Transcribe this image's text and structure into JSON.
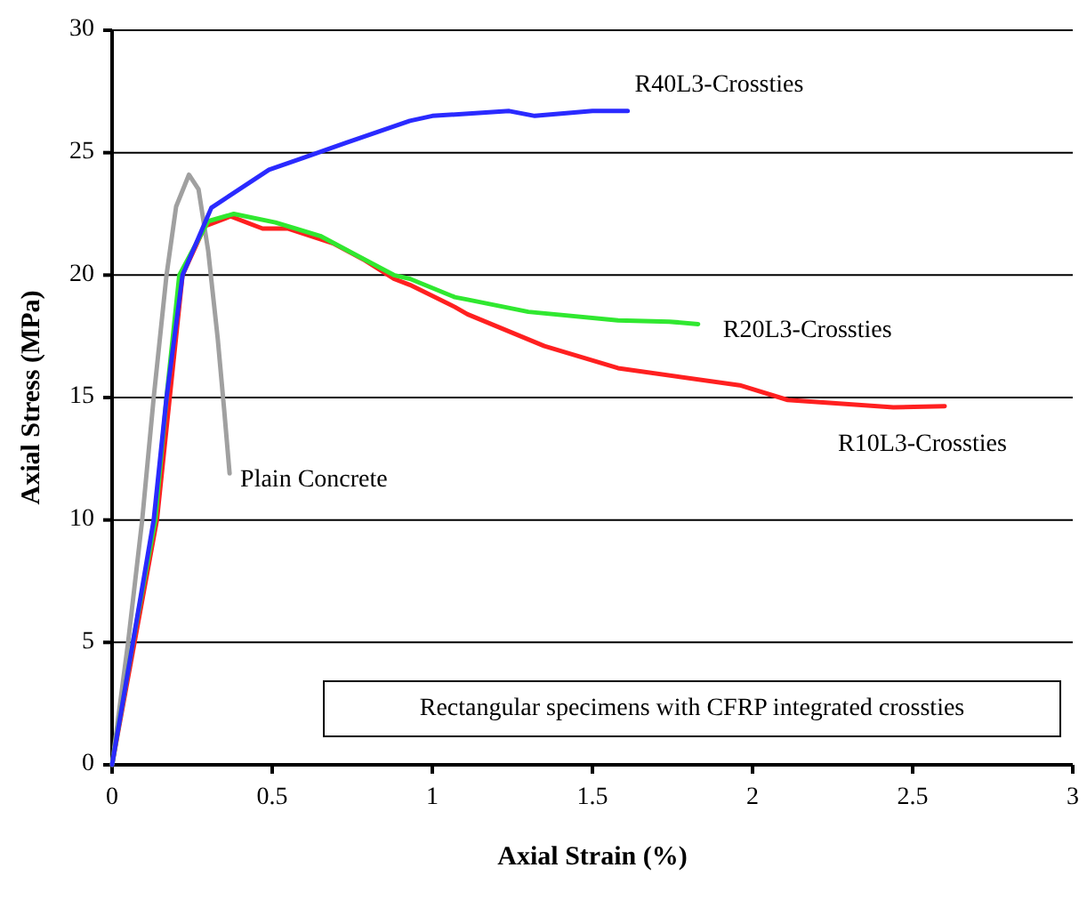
{
  "chart_data": {
    "type": "line",
    "xlabel": "Axial Strain (%)",
    "ylabel": "Axial Stress (MPa)",
    "xlim": [
      0,
      3
    ],
    "xticks": [
      0,
      0.5,
      1,
      1.5,
      2,
      2.5,
      3
    ],
    "ylim": [
      0,
      30
    ],
    "yticks": [
      0,
      5,
      10,
      15,
      20,
      25,
      30
    ],
    "grid": "y",
    "marker": "none",
    "line_style": "solid",
    "annotations": [
      "Rectangular specimens with CFRP integrated crossties"
    ],
    "series": [
      {
        "name": "Plain Concrete",
        "color": "#a0a0a0",
        "x": [
          0,
          0.05,
          0.094,
          0.13,
          0.17,
          0.2,
          0.24,
          0.27,
          0.3,
          0.33,
          0.35,
          0.367
        ],
        "values": [
          0,
          5,
          10,
          15,
          20,
          22.8,
          24.1,
          23.5,
          21,
          17.4,
          14.5,
          11.9
        ]
      },
      {
        "name": "R10L3-Crossties",
        "color": "#ff2020",
        "x": [
          0,
          0.07,
          0.14,
          0.18,
          0.22,
          0.29,
          0.37,
          0.47,
          0.55,
          0.69,
          0.79,
          0.88,
          0.93,
          1.07,
          1.11,
          1.35,
          1.58,
          1.96,
          2.11,
          2.44,
          2.6
        ],
        "values": [
          0,
          5,
          10,
          15,
          20,
          22,
          22.4,
          21.9,
          21.9,
          21.3,
          20.6,
          19.85,
          19.6,
          18.7,
          18.4,
          17.1,
          16.2,
          15.5,
          14.9,
          14.6,
          14.65
        ]
      },
      {
        "name": "R20L3-Crossties",
        "color": "#30e830",
        "x": [
          0,
          0.065,
          0.135,
          0.17,
          0.21,
          0.3,
          0.38,
          0.51,
          0.65,
          0.75,
          0.88,
          0.93,
          1.07,
          1.11,
          1.3,
          1.58,
          1.74,
          1.83
        ],
        "values": [
          0,
          5,
          10,
          15,
          20,
          22.2,
          22.5,
          22.15,
          21.6,
          20.9,
          20,
          19.85,
          19.1,
          19,
          18.5,
          18.15,
          18.1,
          18
        ]
      },
      {
        "name": "R40L3-Crossties",
        "color": "#2a2aff",
        "x": [
          0,
          0.065,
          0.13,
          0.17,
          0.22,
          0.31,
          0.49,
          0.6,
          0.73,
          0.93,
          1.0,
          1.24,
          1.32,
          1.5,
          1.61
        ],
        "values": [
          0,
          5,
          10,
          15,
          20,
          22.75,
          24.3,
          24.8,
          25.4,
          26.3,
          26.5,
          26.7,
          26.5,
          26.7,
          26.7
        ]
      }
    ]
  }
}
